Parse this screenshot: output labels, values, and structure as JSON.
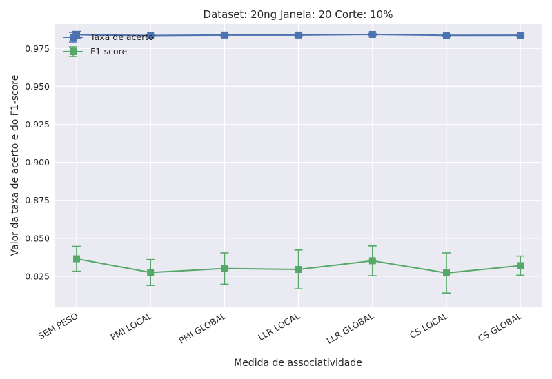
{
  "chart_data": {
    "type": "line",
    "title": "Dataset: 20ng Janela: 20 Corte: 10%",
    "xlabel": "Medida de associatividade",
    "ylabel": "Valor da taxa de acerto e do F1-score",
    "categories": [
      "SEM PESO",
      "PMI LOCAL",
      "PMI GLOBAL",
      "LLR LOCAL",
      "LLR GLOBAL",
      "CS LOCAL",
      "CS GLOBAL"
    ],
    "ylim": [
      0.805,
      0.991
    ],
    "yticks": [
      "0.825",
      "0.850",
      "0.875",
      "0.900",
      "0.925",
      "0.950",
      "0.975"
    ],
    "grid": true,
    "legend_position": "upper-left",
    "series": [
      {
        "name": "Taxa de acerto",
        "color": "#4c72b0",
        "marker": "square",
        "values": [
          0.984,
          0.9835,
          0.9838,
          0.9838,
          0.9842,
          0.9836,
          0.9837
        ],
        "errors": [
          0.0022,
          0.0006,
          0.0006,
          0.0006,
          0.0006,
          0.0006,
          0.0006
        ]
      },
      {
        "name": "F1-score",
        "color": "#55a868",
        "marker": "square",
        "values": [
          0.8365,
          0.8275,
          0.8301,
          0.8295,
          0.8352,
          0.8272,
          0.832
        ],
        "errors": [
          0.0082,
          0.0085,
          0.0103,
          0.0128,
          0.0098,
          0.0132,
          0.0063
        ]
      }
    ]
  }
}
